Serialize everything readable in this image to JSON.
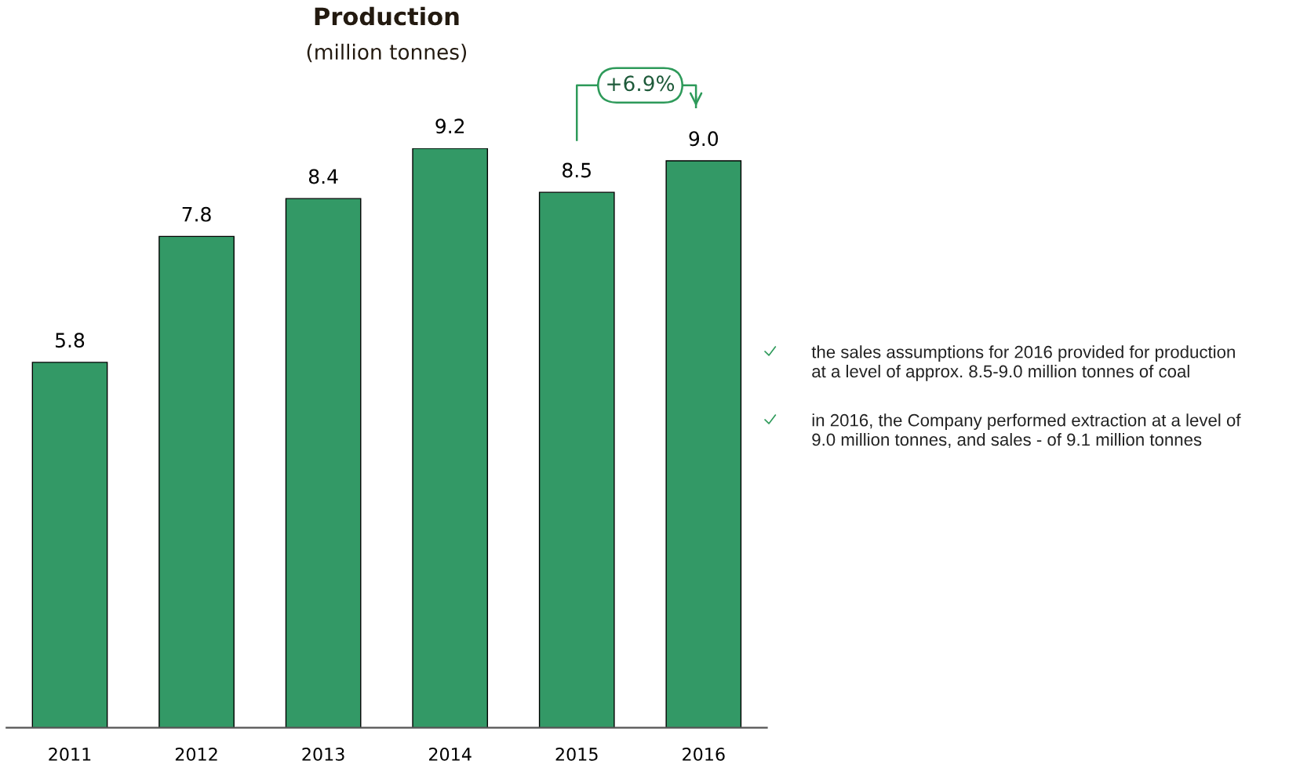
{
  "chart_data": {
    "type": "bar",
    "title": "Production",
    "subtitle": "(million tonnes)",
    "categories": [
      "2011",
      "2012",
      "2013",
      "2014",
      "2015",
      "2016"
    ],
    "values": [
      5.8,
      7.8,
      8.4,
      9.2,
      8.5,
      9.0
    ],
    "value_labels": [
      "5.8",
      "7.8",
      "8.4",
      "9.2",
      "8.5",
      "9.0"
    ],
    "color": "#339966",
    "grid": false,
    "annotations": [
      "+6.9%",
      "the sales assumptions for 2016 provided for production\nat a level of approx. 8.5-9.0 million tonnes of coal",
      "in 2016, the Company performed extraction at a level of\n9.0 million tonnes, and sales - of 9.1 million tonnes"
    ]
  }
}
